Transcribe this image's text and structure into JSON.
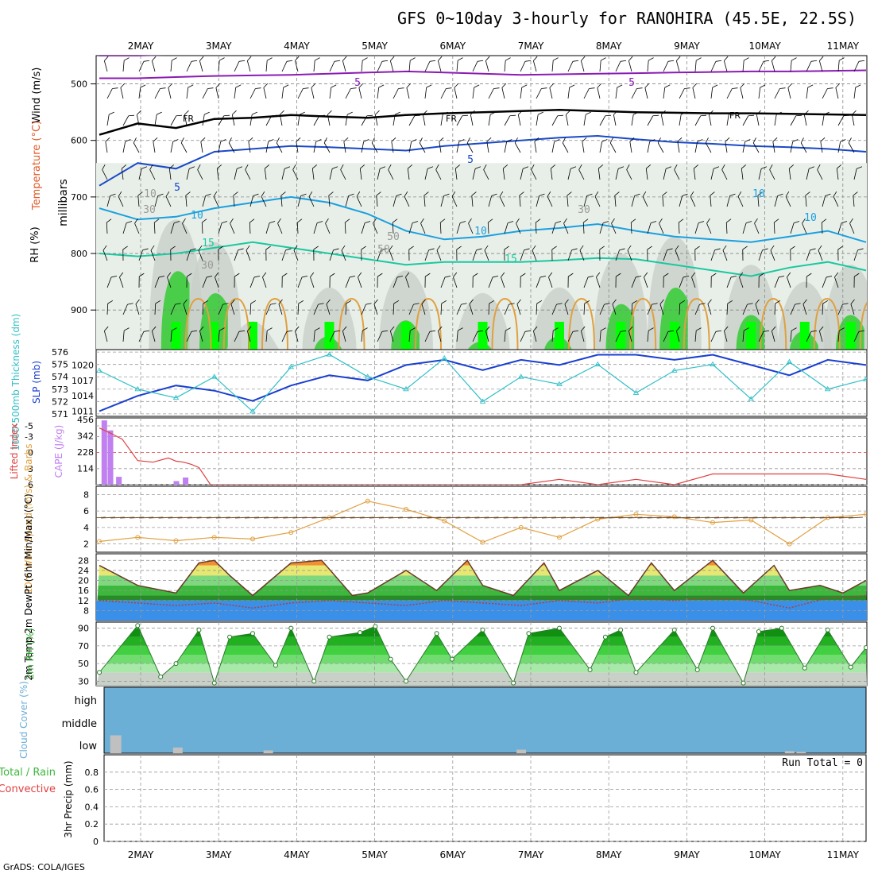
{
  "title": "GFS 0~10day 3-hourly for RANOHIRA (45.5E, 22.5S)",
  "credit": "GrADS: COLA/IGES",
  "dates": [
    "2MAY",
    "3MAY",
    "4MAY",
    "5MAY",
    "6MAY",
    "7MAY",
    "8MAY",
    "9MAY",
    "10MAY",
    "11MAY"
  ],
  "colors": {
    "rh_green": "#33cc33",
    "rh_bright": "#00ff00",
    "rh_grey": "#c8d0c8",
    "t_blue": "#1a49c8",
    "t_cyan": "#1aa0e0",
    "t_teal": "#1ac8a0",
    "t_purple": "#8c1ab4",
    "t_orange": "#e0a040",
    "freezing": "#000000",
    "slp": "#1a3fd0",
    "thickness": "#30c0c8",
    "cape": "#c080f0",
    "li": "#e04040",
    "wind_speed": "#e0a040",
    "cloud": "#6baed6",
    "cloud_low": "#c0c0c0"
  },
  "chart_data": [
    {
      "panel": "upper-air",
      "type": "heatmap",
      "ylabel": "millibars",
      "legend_labels": [
        "Wind (m/s)",
        "Temperature (°C)",
        "RH (%)"
      ],
      "yticks": [
        500,
        600,
        700,
        800,
        900
      ],
      "ylim": [
        970,
        450
      ],
      "contour_labels": [
        "5",
        "5",
        "FR",
        "FR",
        "FR",
        "5",
        "5",
        "10",
        "10",
        "10",
        "15",
        "15",
        "10",
        "30",
        "30",
        "50",
        "50",
        "30",
        "10"
      ],
      "isotherms": [
        {
          "name": "5",
          "series_level": [
            490,
            490,
            488,
            486,
            485,
            484,
            482,
            480,
            478,
            480,
            482,
            484,
            483,
            482,
            481,
            480,
            479,
            478,
            478,
            477,
            476
          ]
        },
        {
          "name": "0 (FR)",
          "series_level": [
            590,
            570,
            578,
            562,
            560,
            555,
            558,
            560,
            555,
            552,
            550,
            548,
            546,
            548,
            550,
            551,
            552,
            552,
            553,
            554,
            555
          ]
        },
        {
          "name": "-5",
          "series_level": [
            680,
            640,
            650,
            620,
            615,
            610,
            612,
            615,
            618,
            610,
            605,
            600,
            595,
            592,
            598,
            603,
            606,
            610,
            612,
            615,
            620
          ]
        },
        {
          "name": "-10",
          "series_level": [
            720,
            740,
            735,
            720,
            710,
            700,
            710,
            730,
            760,
            775,
            770,
            760,
            755,
            748,
            760,
            770,
            775,
            780,
            770,
            760,
            780
          ]
        },
        {
          "name": "-15",
          "series_level": [
            800,
            805,
            800,
            790,
            780,
            790,
            800,
            810,
            820,
            815,
            815,
            815,
            812,
            808,
            810,
            820,
            830,
            840,
            825,
            815,
            830
          ]
        }
      ],
      "rh_zones": [
        {
          "day": 1.0,
          "level": 740
        },
        {
          "day": 1.5,
          "level": 780
        },
        {
          "day": 2.0,
          "level": 920
        },
        {
          "day": 3.0,
          "level": 860
        },
        {
          "day": 4.0,
          "level": 830
        },
        {
          "day": 5.0,
          "level": 870
        },
        {
          "day": 6.0,
          "level": 860
        },
        {
          "day": 6.8,
          "level": 800
        },
        {
          "day": 7.5,
          "level": 770
        },
        {
          "day": 8.5,
          "level": 820
        },
        {
          "day": 9.2,
          "level": 850
        },
        {
          "day": 9.8,
          "level": 820
        }
      ]
    },
    {
      "panel": "slp-thickness",
      "type": "line",
      "y1label": "SLP (mb)",
      "y2label": "1000-500mb Thickness (dm)",
      "y1ticks": [
        1011,
        1014,
        1017,
        1020
      ],
      "y2ticks": [
        571,
        572,
        573,
        574,
        575,
        576
      ],
      "y1lim": [
        1010,
        1023
      ],
      "y2lim": [
        570.8,
        576.2
      ],
      "series": [
        {
          "name": "SLP",
          "x_day": [
            0.0,
            0.5,
            1.0,
            1.5,
            2.0,
            2.5,
            3.0,
            3.5,
            4.0,
            4.5,
            5.0,
            5.5,
            6.0,
            6.5,
            7.0,
            7.5,
            8.0,
            8.5,
            9.0,
            9.5,
            10.0
          ],
          "values": [
            1011,
            1014,
            1016,
            1015,
            1013,
            1016,
            1018,
            1017,
            1020,
            1021,
            1019,
            1021,
            1020,
            1022,
            1022,
            1021,
            1022,
            1020,
            1018,
            1021,
            1020
          ]
        },
        {
          "name": "Thickness",
          "x_day": [
            0.0,
            0.5,
            1.0,
            1.5,
            2.0,
            2.5,
            3.0,
            3.5,
            4.0,
            4.5,
            5.0,
            5.5,
            6.0,
            6.5,
            7.0,
            7.5,
            8.0,
            8.5,
            9.0,
            9.5,
            10.0
          ],
          "values": [
            574.5,
            573.0,
            572.3,
            574.0,
            571.2,
            574.8,
            575.8,
            574.0,
            573.0,
            575.5,
            572.0,
            574.0,
            573.4,
            575.0,
            572.7,
            574.5,
            575.0,
            572.2,
            575.2,
            573.0,
            573.8
          ]
        }
      ]
    },
    {
      "panel": "cape-li",
      "type": "bar",
      "y1label": "Lifted Index",
      "y2label": "CAPE (J/kg)",
      "y1ticks": [
        "-5",
        "-3",
        "0",
        "3",
        "6"
      ],
      "y2ticks": [
        114,
        228,
        342,
        456
      ],
      "ylim": [
        0,
        456
      ],
      "cape_bars": [
        {
          "x_day": 0.06,
          "value": 450
        },
        {
          "x_day": 0.14,
          "value": 380
        },
        {
          "x_day": 0.25,
          "value": 55
        },
        {
          "x_day": 1.0,
          "value": 25
        },
        {
          "x_day": 1.12,
          "value": 50
        }
      ],
      "li_series": {
        "name": "Lifted Index",
        "x_day": [
          0.0,
          0.15,
          0.3,
          0.5,
          0.7,
          0.9,
          1.0,
          1.1,
          1.2,
          1.3,
          1.45,
          1.6,
          1.8,
          2.5,
          3.0,
          3.5,
          4.0,
          4.5,
          5.0,
          5.5,
          6.0,
          6.5,
          7.0,
          7.5,
          8.0,
          8.5,
          9.0,
          9.5,
          10.0
        ],
        "values": [
          -4.6,
          -3.6,
          -2.5,
          1.5,
          1.8,
          1.0,
          1.6,
          1.8,
          2.2,
          2.8,
          6,
          6,
          6,
          6,
          6,
          6,
          6,
          6,
          6,
          6,
          5,
          6,
          5,
          6,
          4,
          4,
          4,
          4,
          5
        ]
      }
    },
    {
      "panel": "10m-wind",
      "type": "line",
      "ylabel": "10m Wind Speed (m/s) & Barbs",
      "yticks": [
        2,
        4,
        6,
        8
      ],
      "ylim": [
        1,
        9
      ],
      "series": [
        {
          "name": "Wind speed",
          "x_day": [
            0.0,
            0.5,
            1.0,
            1.5,
            2.0,
            2.5,
            3.0,
            3.5,
            4.0,
            4.5,
            5.0,
            5.5,
            6.0,
            6.5,
            7.0,
            7.5,
            8.0,
            8.5,
            9.0,
            9.5,
            10.0
          ],
          "values": [
            2.3,
            2.8,
            2.4,
            2.8,
            2.6,
            3.4,
            5.2,
            7.2,
            6.2,
            4.8,
            2.2,
            4.0,
            2.8,
            5.0,
            5.6,
            5.3,
            4.6,
            4.9,
            2.0,
            5.2,
            5.6
          ]
        }
      ]
    },
    {
      "panel": "2m-temp",
      "type": "area",
      "ylabel": "2m Temp 2m DewPt (6hr Min/Max) (°C)",
      "yticks": [
        8,
        12,
        16,
        20,
        24,
        28
      ],
      "ylim": [
        4,
        30
      ],
      "series": [
        {
          "name": "2m Temp",
          "x_day": [
            0.0,
            0.5,
            1.0,
            1.3,
            1.5,
            1.7,
            2.0,
            2.5,
            2.9,
            3.3,
            3.5,
            4.0,
            4.4,
            4.8,
            5.0,
            5.4,
            5.8,
            6.0,
            6.5,
            6.9,
            7.2,
            7.5,
            8.0,
            8.4,
            8.8,
            9.0,
            9.4,
            9.7,
            10.0
          ],
          "values": [
            26,
            18,
            15,
            27,
            28,
            22,
            14,
            27,
            28,
            14,
            15,
            24,
            16,
            28,
            18,
            14,
            27,
            16,
            24,
            14,
            27,
            16,
            28,
            15,
            26,
            16,
            18,
            15,
            20
          ]
        },
        {
          "name": "2m DewPt",
          "x_day": [
            0.0,
            0.5,
            1.0,
            1.5,
            2.0,
            2.5,
            3.0,
            3.5,
            4.0,
            4.5,
            5.0,
            5.5,
            6.0,
            6.5,
            7.0,
            7.5,
            8.0,
            8.5,
            9.0,
            9.5,
            10.0
          ],
          "values": [
            12,
            11,
            10,
            11,
            9,
            11,
            12,
            11,
            10,
            12,
            11,
            10,
            12,
            11,
            13,
            12,
            13,
            12,
            9,
            13,
            14
          ]
        }
      ]
    },
    {
      "panel": "2m-rh",
      "type": "area",
      "ylabel": "2m RH (%)",
      "yticks": [
        30,
        50,
        70,
        90
      ],
      "ylim": [
        25,
        95
      ],
      "series": [
        {
          "name": "2m RH",
          "x_day": [
            0.0,
            0.5,
            0.8,
            1.0,
            1.3,
            1.5,
            1.7,
            2.0,
            2.3,
            2.5,
            2.8,
            3.0,
            3.4,
            3.6,
            3.8,
            4.0,
            4.4,
            4.6,
            5.0,
            5.4,
            5.6,
            6.0,
            6.4,
            6.6,
            6.8,
            7.0,
            7.5,
            7.8,
            8.0,
            8.4,
            8.6,
            8.9,
            9.2,
            9.5,
            9.8,
            10.0
          ],
          "values": [
            40,
            93,
            35,
            50,
            88,
            28,
            80,
            84,
            48,
            90,
            30,
            80,
            85,
            92,
            55,
            30,
            84,
            55,
            88,
            28,
            84,
            90,
            43,
            80,
            88,
            40,
            88,
            43,
            90,
            28,
            86,
            90,
            45,
            88,
            46,
            68
          ]
        }
      ]
    },
    {
      "panel": "cloud-cover",
      "type": "bar",
      "ylabel": "Cloud Cover (%)",
      "yticks": [
        "high",
        "middle",
        "low"
      ],
      "ylim": [
        0,
        100
      ],
      "series": [
        {
          "name": "high",
          "values": [
            100
          ]
        },
        {
          "name": "middle",
          "values": [
            100
          ]
        },
        {
          "name": "low",
          "x_day": [
            0.1,
            0.92,
            2.1,
            5.4,
            8.9,
            9.05
          ],
          "values": [
            25,
            8,
            4,
            5,
            3,
            2
          ]
        }
      ]
    },
    {
      "panel": "precip",
      "type": "bar",
      "ylabel": "3hr Precip (mm)",
      "legend_labels": [
        "Total / Rain",
        "Convective"
      ],
      "yticks": [
        "0",
        "0.2",
        "0.4",
        "0.6",
        "0.8"
      ],
      "ylim": [
        0,
        1
      ],
      "run_total": "Run Total = 0",
      "values": [
        0
      ]
    }
  ]
}
